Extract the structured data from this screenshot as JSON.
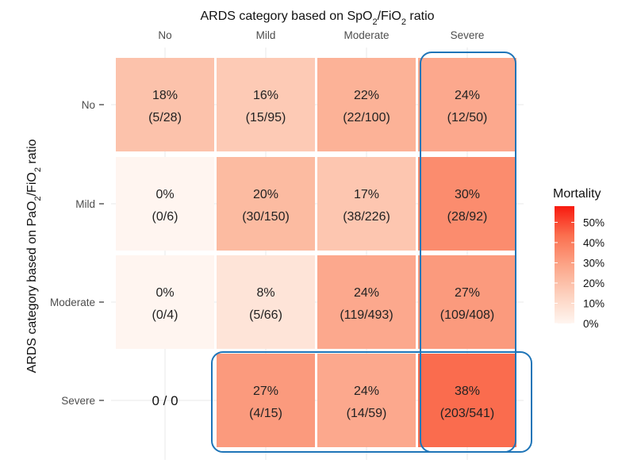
{
  "chart_data": {
    "type": "heatmap",
    "title": "",
    "xlabel_html": "ARDS category based on SpO<tspan baseline-shift=\"sub\" font-size=\"11\">2</tspan>/FiO<tspan baseline-shift=\"sub\" font-size=\"11\">2</tspan> ratio",
    "xlabel": "ARDS category based on SpO2/FiO2 ratio",
    "ylabel": "ARDS category based on PaO2/FiO2 ratio",
    "x_categories": [
      "No",
      "Mild",
      "Moderate",
      "Severe"
    ],
    "y_categories": [
      "No",
      "Mild",
      "Moderate",
      "Severe"
    ],
    "cells": [
      {
        "row": 0,
        "col": 0,
        "percent": "18%",
        "count": "(5/28)",
        "value": 18
      },
      {
        "row": 0,
        "col": 1,
        "percent": "16%",
        "count": "(15/95)",
        "value": 16
      },
      {
        "row": 0,
        "col": 2,
        "percent": "22%",
        "count": "(22/100)",
        "value": 22
      },
      {
        "row": 0,
        "col": 3,
        "percent": "24%",
        "count": "(12/50)",
        "value": 24
      },
      {
        "row": 1,
        "col": 0,
        "percent": "0%",
        "count": "(0/6)",
        "value": 0
      },
      {
        "row": 1,
        "col": 1,
        "percent": "20%",
        "count": "(30/150)",
        "value": 20
      },
      {
        "row": 1,
        "col": 2,
        "percent": "17%",
        "count": "(38/226)",
        "value": 17
      },
      {
        "row": 1,
        "col": 3,
        "percent": "30%",
        "count": "(28/92)",
        "value": 30
      },
      {
        "row": 2,
        "col": 0,
        "percent": "0%",
        "count": "(0/4)",
        "value": 0
      },
      {
        "row": 2,
        "col": 1,
        "percent": "8%",
        "count": "(5/66)",
        "value": 8
      },
      {
        "row": 2,
        "col": 2,
        "percent": "24%",
        "count": "(119/493)",
        "value": 24
      },
      {
        "row": 2,
        "col": 3,
        "percent": "27%",
        "count": "(109/408)",
        "value": 27
      },
      {
        "row": 3,
        "col": 1,
        "percent": "27%",
        "count": "(4/15)",
        "value": 27
      },
      {
        "row": 3,
        "col": 2,
        "percent": "24%",
        "count": "(14/59)",
        "value": 24
      },
      {
        "row": 3,
        "col": 3,
        "percent": "38%",
        "count": "(203/541)",
        "value": 38
      }
    ],
    "empty_cells": [
      {
        "row": 3,
        "col": 0,
        "label": "0 / 0"
      }
    ],
    "legend": {
      "title": "Mortality",
      "labels": [
        "50%",
        "40%",
        "30%",
        "20%",
        "10%",
        "0%"
      ],
      "values": [
        50,
        40,
        30,
        20,
        10,
        0
      ],
      "range": [
        0,
        58
      ]
    },
    "color_low": "#fff5f0",
    "color_high": "#fb2a12",
    "highlight_color": "#1f75b8"
  }
}
